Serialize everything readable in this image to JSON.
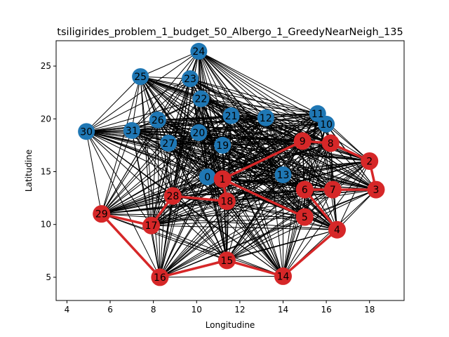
{
  "chart_data": {
    "type": "network-graph",
    "title": "tsiligirides_problem_1_budget_50_Albergo_1_GreedyNearNeigh_135",
    "xlabel": "Longitudine",
    "ylabel": "Latitudine",
    "xlim": [
      3.5,
      19.6
    ],
    "ylim": [
      2.8,
      27.4
    ],
    "xticks": [
      4,
      6,
      8,
      10,
      12,
      14,
      16,
      18
    ],
    "yticks": [
      5,
      10,
      15,
      20,
      25
    ],
    "colors": {
      "unvisited": "#1f77b4",
      "visited": "#d62728",
      "edge": "#000000",
      "route": "#d62728"
    },
    "nodes": [
      {
        "id": "0",
        "x": 10.5,
        "y": 14.5,
        "visited": false
      },
      {
        "id": "1",
        "x": 11.2,
        "y": 14.3,
        "visited": true
      },
      {
        "id": "2",
        "x": 18.0,
        "y": 16.0,
        "visited": true
      },
      {
        "id": "3",
        "x": 18.3,
        "y": 13.3,
        "visited": true
      },
      {
        "id": "4",
        "x": 16.5,
        "y": 9.5,
        "visited": true
      },
      {
        "id": "5",
        "x": 15.0,
        "y": 10.7,
        "visited": true
      },
      {
        "id": "6",
        "x": 15.0,
        "y": 13.3,
        "visited": true
      },
      {
        "id": "7",
        "x": 16.3,
        "y": 13.3,
        "visited": true
      },
      {
        "id": "8",
        "x": 16.2,
        "y": 17.7,
        "visited": true
      },
      {
        "id": "9",
        "x": 14.9,
        "y": 17.9,
        "visited": true
      },
      {
        "id": "10",
        "x": 16.0,
        "y": 19.5,
        "visited": false
      },
      {
        "id": "11",
        "x": 15.6,
        "y": 20.5,
        "visited": false
      },
      {
        "id": "12",
        "x": 13.2,
        "y": 20.1,
        "visited": false
      },
      {
        "id": "13",
        "x": 14.0,
        "y": 14.7,
        "visited": false
      },
      {
        "id": "14",
        "x": 14.0,
        "y": 5.1,
        "visited": true
      },
      {
        "id": "15",
        "x": 11.4,
        "y": 6.6,
        "visited": true
      },
      {
        "id": "16",
        "x": 8.3,
        "y": 5.0,
        "visited": true
      },
      {
        "id": "17",
        "x": 7.9,
        "y": 9.9,
        "visited": true
      },
      {
        "id": "18",
        "x": 11.4,
        "y": 12.2,
        "visited": true
      },
      {
        "id": "19",
        "x": 11.2,
        "y": 17.5,
        "visited": false
      },
      {
        "id": "20",
        "x": 10.1,
        "y": 18.7,
        "visited": false
      },
      {
        "id": "21",
        "x": 11.6,
        "y": 20.3,
        "visited": false
      },
      {
        "id": "22",
        "x": 10.2,
        "y": 21.9,
        "visited": false
      },
      {
        "id": "23",
        "x": 9.7,
        "y": 23.8,
        "visited": false
      },
      {
        "id": "24",
        "x": 10.1,
        "y": 26.4,
        "visited": false
      },
      {
        "id": "25",
        "x": 7.4,
        "y": 24.0,
        "visited": false
      },
      {
        "id": "26",
        "x": 8.2,
        "y": 19.9,
        "visited": false
      },
      {
        "id": "27",
        "x": 8.7,
        "y": 17.7,
        "visited": false
      },
      {
        "id": "28",
        "x": 8.9,
        "y": 12.7,
        "visited": true
      },
      {
        "id": "29",
        "x": 5.6,
        "y": 11.0,
        "visited": true
      },
      {
        "id": "30",
        "x": 4.9,
        "y": 18.8,
        "visited": false
      },
      {
        "id": "31",
        "x": 7.0,
        "y": 18.9,
        "visited": false
      }
    ],
    "route": [
      "1",
      "9",
      "8",
      "2",
      "3",
      "7",
      "6",
      "4",
      "14",
      "15",
      "16",
      "29",
      "17",
      "28",
      "18",
      "1",
      "5"
    ]
  }
}
